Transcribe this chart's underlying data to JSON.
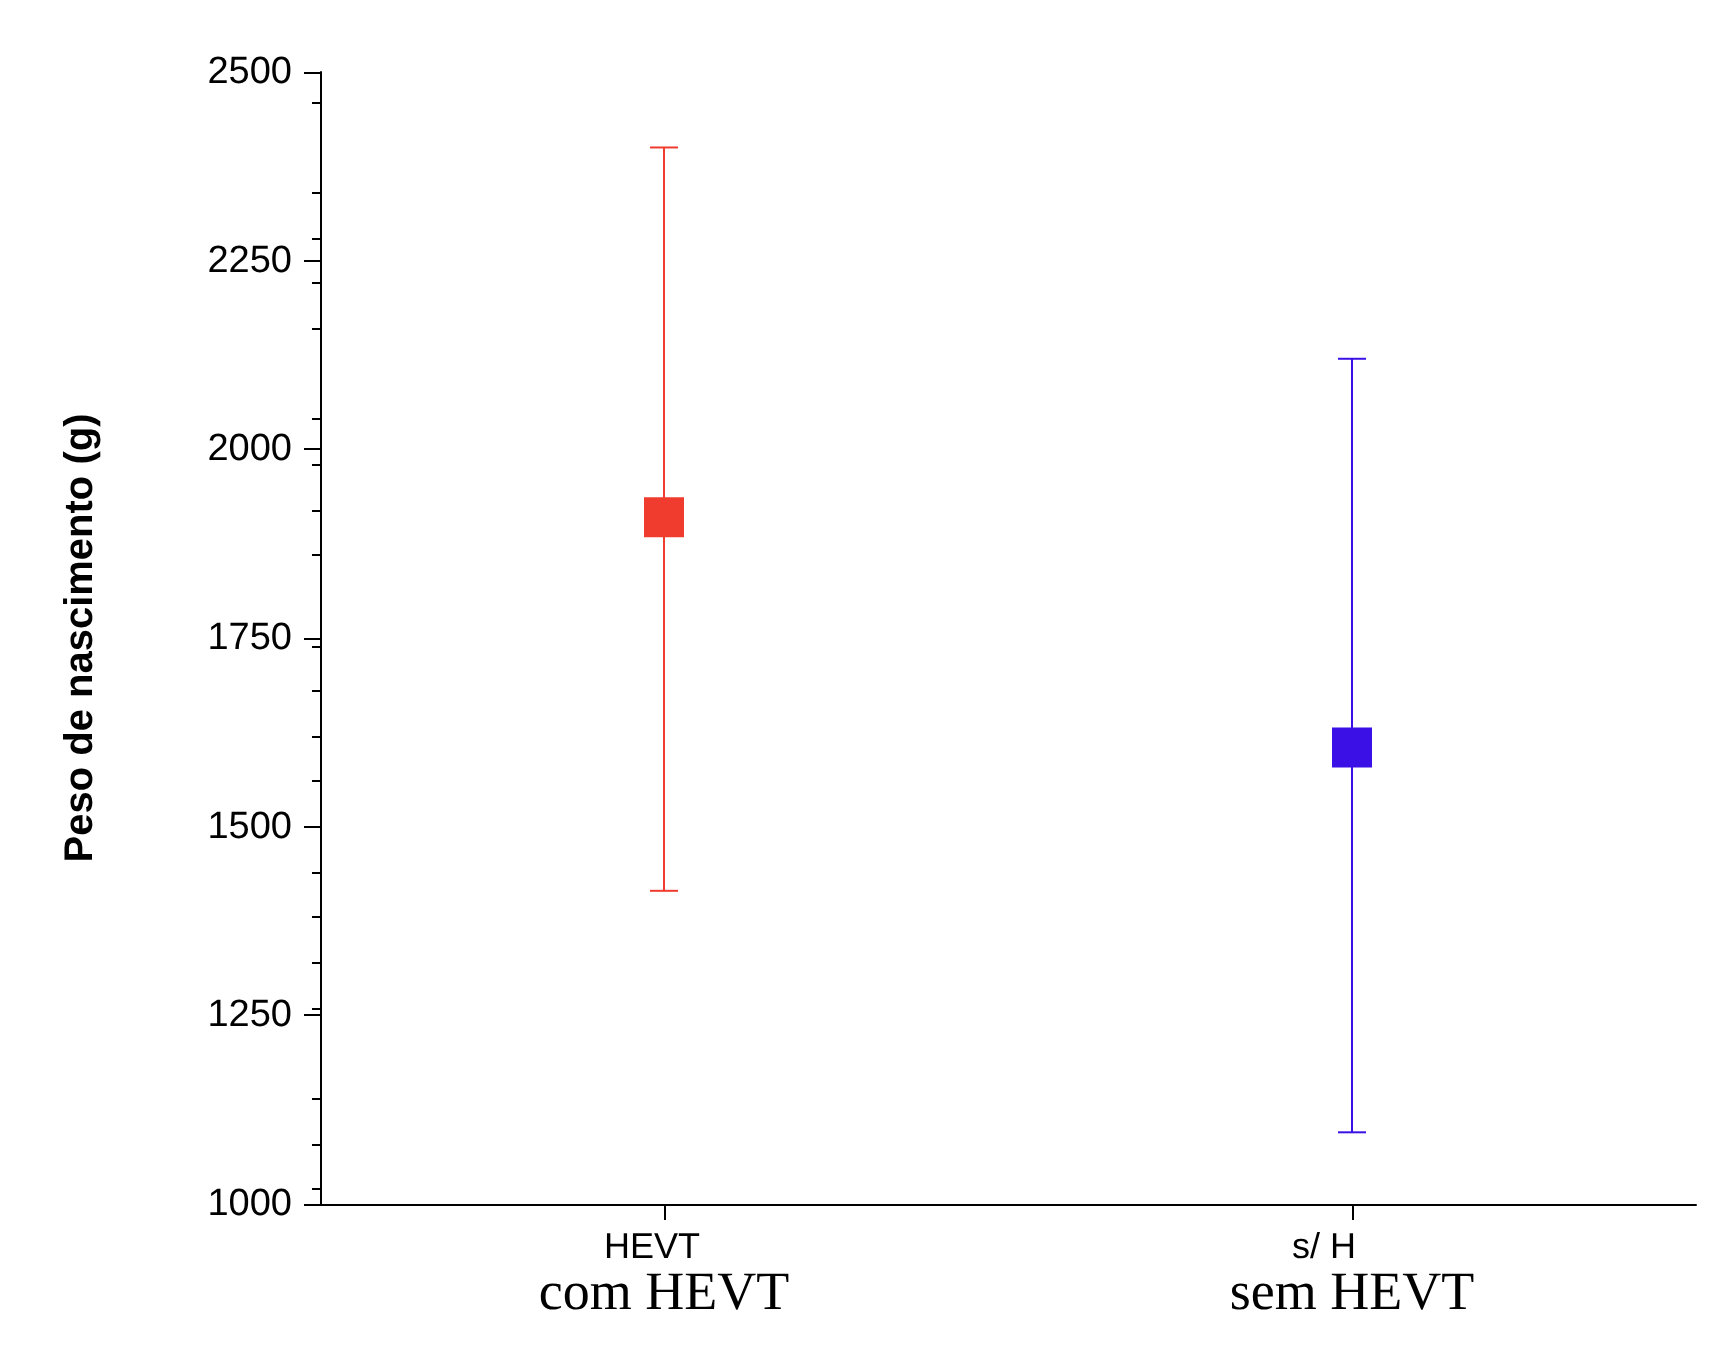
{
  "chart_data": {
    "type": "scatter",
    "ylabel": "Peso de nascimento (g)",
    "categories": [
      "com HEVT",
      "sem HEVT"
    ],
    "values": [
      1910,
      1605
    ],
    "errors": [
      [
        1415,
        2400
      ],
      [
        1095,
        2120
      ]
    ],
    "colors": [
      "#f03c2e",
      "#3a10e6"
    ],
    "marker": "square",
    "ylim": [
      1000,
      2500
    ],
    "yticks": [
      1000,
      1250,
      1500,
      1750,
      2000,
      2250,
      2500
    ],
    "grid": false,
    "annotations": [
      "HEVT",
      "s/ H"
    ]
  }
}
